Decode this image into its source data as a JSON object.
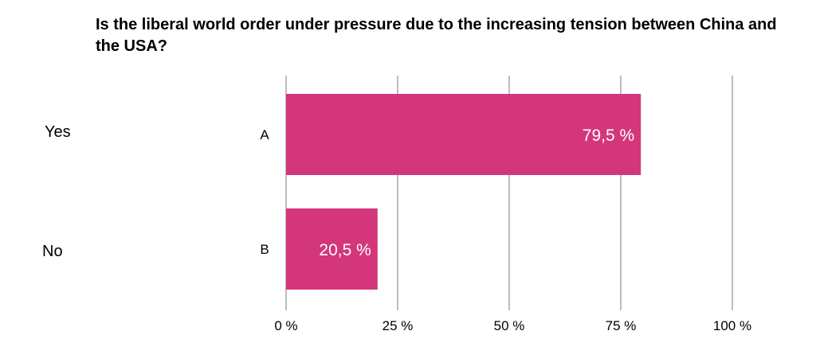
{
  "chart_data": {
    "type": "bar",
    "orientation": "horizontal",
    "title": "Is the liberal world order under pressure due to the increasing tension between China and the USA?",
    "categories": [
      "A",
      "B"
    ],
    "answers": [
      "Yes",
      "No"
    ],
    "values": [
      79.5,
      20.5
    ],
    "value_labels": [
      "79,5 %",
      "20,5 %"
    ],
    "xlim": [
      0,
      100
    ],
    "x_ticks": [
      0,
      25,
      50,
      75,
      100
    ],
    "x_tick_labels": [
      "0 %",
      "25 %",
      "50 %",
      "75 %",
      "100 %"
    ],
    "grid": true,
    "bar_color": "#D3367B",
    "grid_color": "#BDBDBD"
  }
}
